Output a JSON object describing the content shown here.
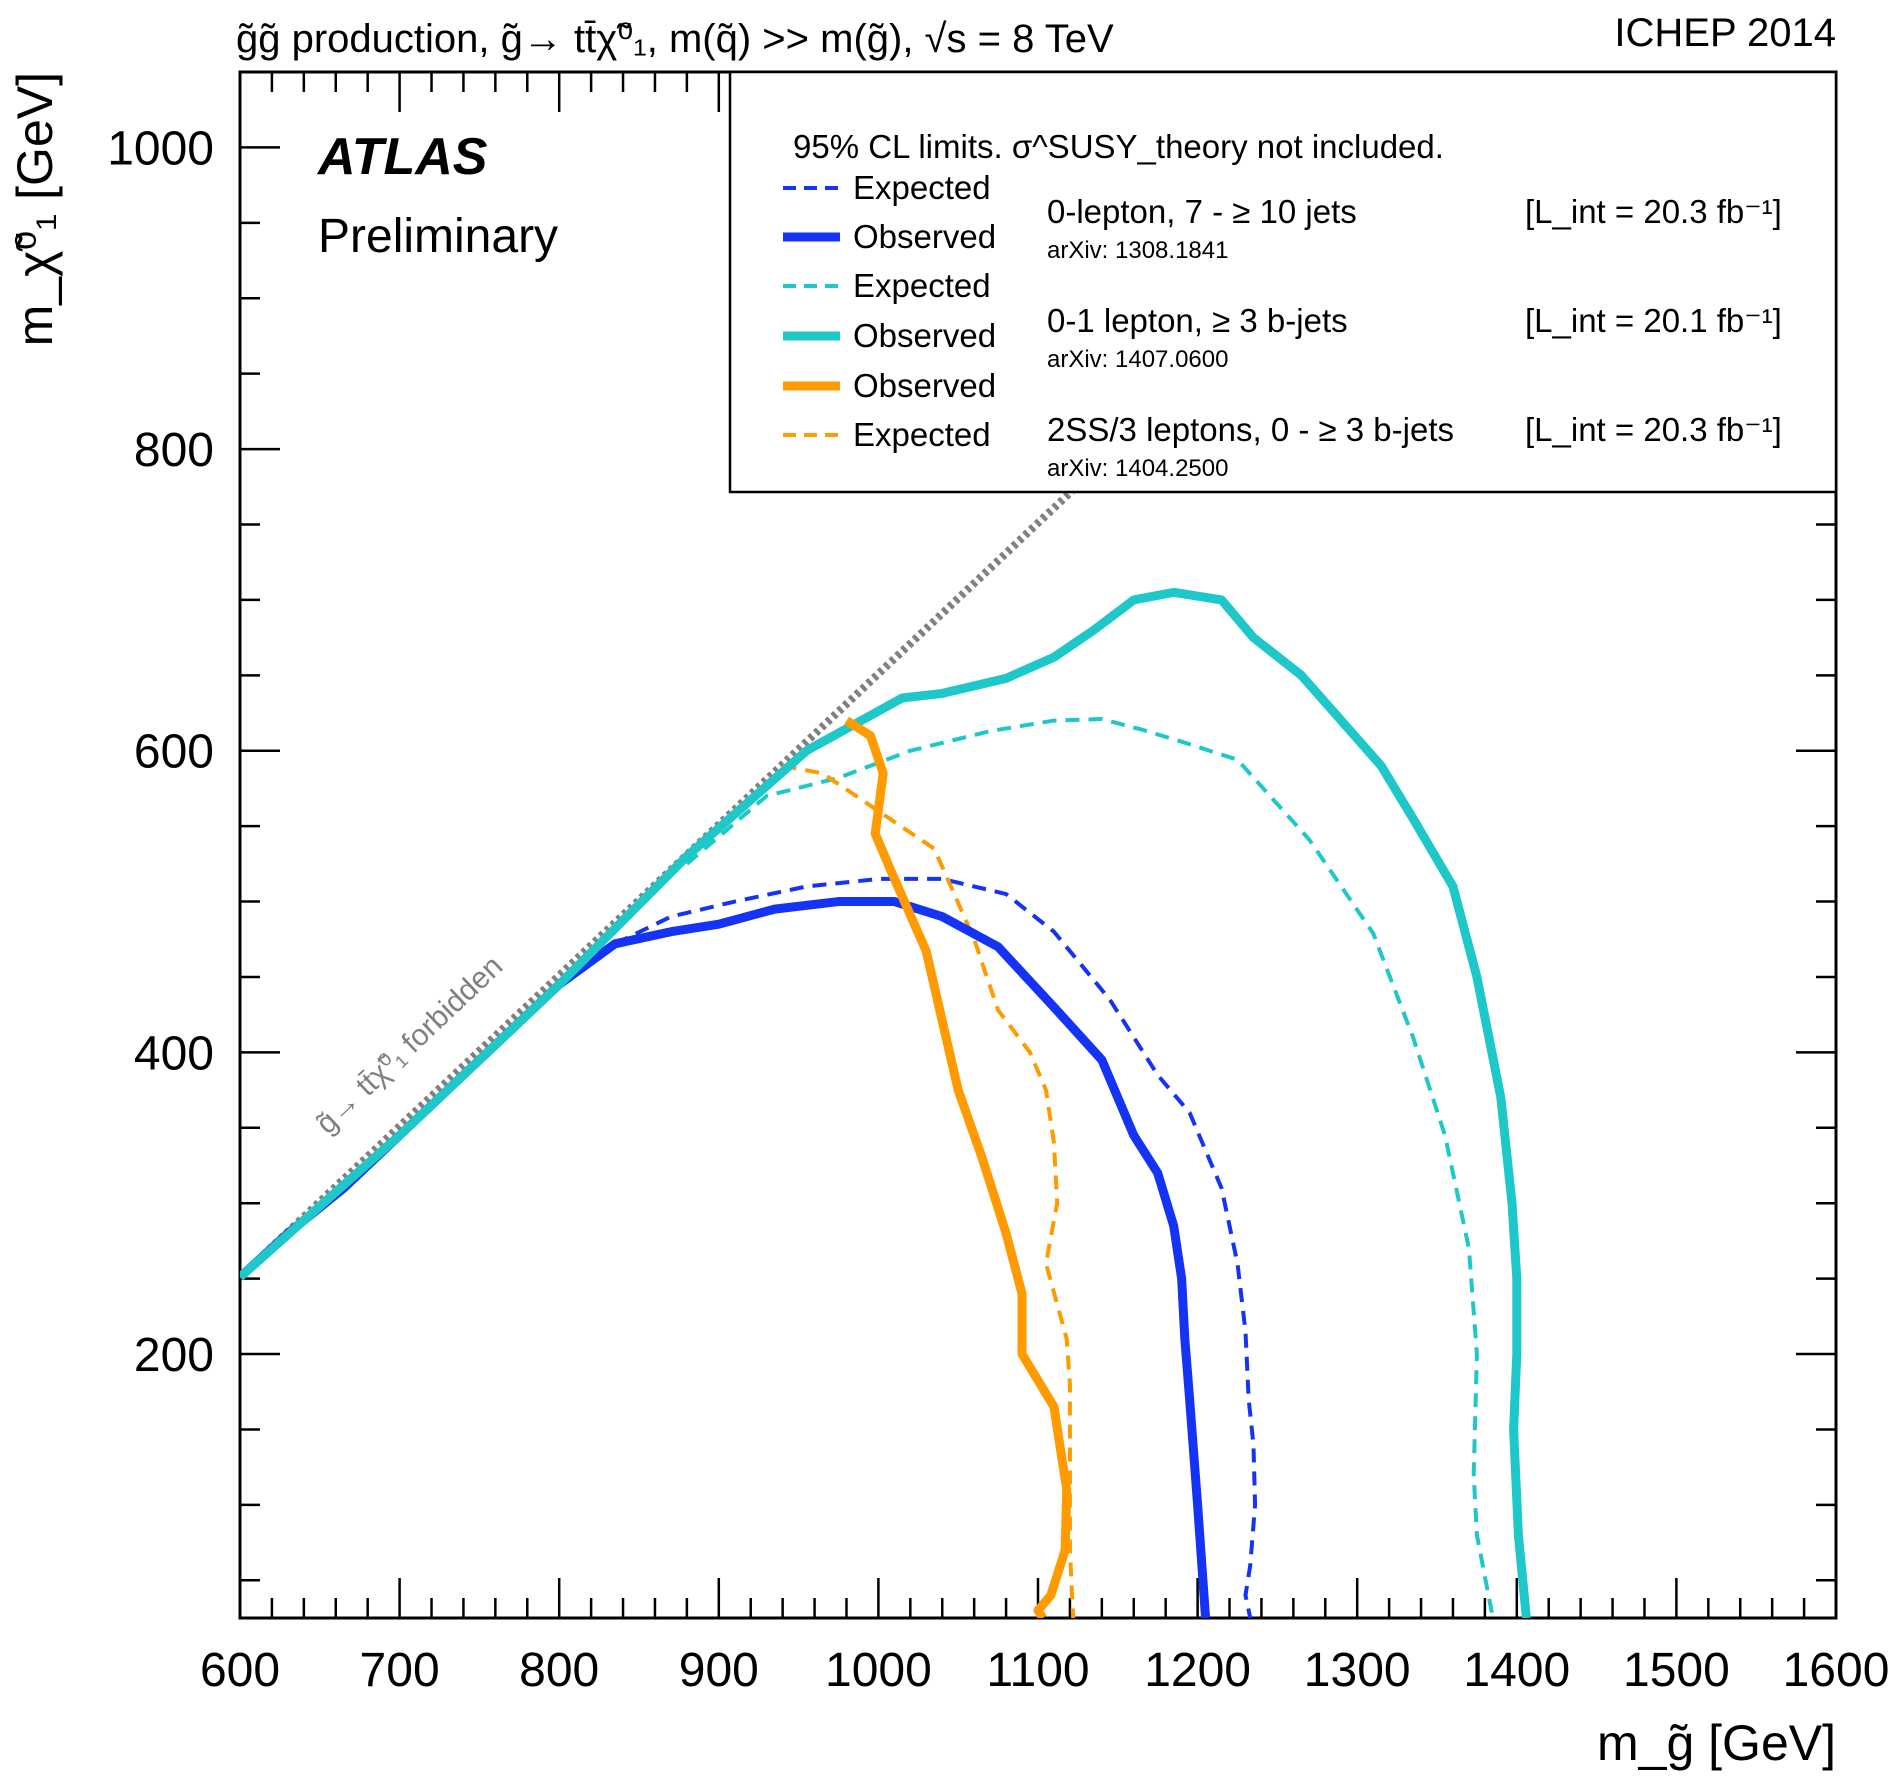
{
  "header": {
    "process": "g̃g̃ production, g̃→ tt̄χ̃⁰₁, m(q̃) >> m(g̃), √s = 8 TeV",
    "conference": "ICHEP 2014"
  },
  "badge": {
    "experiment": "ATLAS",
    "status": "Preliminary"
  },
  "forbidden_label": "g̃→ tt̄χ̃⁰₁ forbidden",
  "legend": {
    "header": "95% CL limits. σ^SUSY_theory not included.",
    "entries": [
      {
        "label": "Expected",
        "color": "#1433f5",
        "style": "dashed"
      },
      {
        "label": "Observed",
        "color": "#1433f5",
        "style": "solid"
      },
      {
        "label": "Expected",
        "color": "#1fc8c8",
        "style": "dashed"
      },
      {
        "label": "Observed",
        "color": "#1fc8c8",
        "style": "solid"
      },
      {
        "label": "Observed",
        "color": "#ff9a00",
        "style": "solid"
      },
      {
        "label": "Expected",
        "color": "#ff9a00",
        "style": "dashed"
      }
    ],
    "analyses": [
      {
        "name": "0-lepton, 7 - ≥ 10 jets",
        "arxiv": "arXiv: 1308.1841",
        "lumi": "[L_int = 20.3 fb⁻¹]"
      },
      {
        "name": "0-1 lepton, ≥ 3 b-jets",
        "arxiv": "arXiv: 1407.0600",
        "lumi": "[L_int = 20.1 fb⁻¹]"
      },
      {
        "name": "2SS/3 leptons, 0 - ≥ 3 b-jets",
        "arxiv": "arXiv: 1404.2500",
        "lumi": "[L_int = 20.3 fb⁻¹]"
      }
    ]
  },
  "colors": {
    "zero_lepton": "#1433f5",
    "bjets": "#1fc8c8",
    "ss_leptons": "#ff9a00",
    "kinematic_limit": "#808080"
  },
  "chart_data": {
    "type": "line",
    "title": "g̃g̃ production, g̃→ tt̄χ̃⁰₁, m(q̃) >> m(g̃), √s = 8 TeV",
    "xlabel": "m_g̃ [GeV]",
    "ylabel": "m_χ̃⁰₁ [GeV]",
    "xlim": [
      600,
      1600
    ],
    "ylim": [
      25,
      1050
    ],
    "xticks": [
      600,
      700,
      800,
      900,
      1000,
      1100,
      1200,
      1300,
      1400,
      1500,
      1600
    ],
    "yticks": [
      200,
      400,
      600,
      800,
      1000
    ],
    "grid": false,
    "legend_position": "top-right",
    "kinematic_limit": {
      "x": [
        600,
        1130
      ],
      "y": [
        251,
        781
      ]
    },
    "series": [
      {
        "name": "0-lepton, 7 - ≥ 10 jets — Observed",
        "analysis": 0,
        "style": "solid",
        "color": "#1433f5",
        "x": [
          600,
          630,
          665,
          695,
          730,
          765,
          800,
          835,
          870,
          900,
          935,
          975,
          1010,
          1040,
          1075,
          1110,
          1140,
          1160,
          1175,
          1185,
          1190,
          1192,
          1195,
          1200,
          1205
        ],
        "y": [
          251,
          280,
          310,
          340,
          375,
          410,
          445,
          472,
          480,
          485,
          495,
          500,
          500,
          490,
          470,
          430,
          395,
          345,
          320,
          285,
          250,
          210,
          170,
          100,
          25
        ]
      },
      {
        "name": "0-lepton, 7 - ≥ 10 jets — Expected",
        "analysis": 0,
        "style": "dashed",
        "color": "#1433f5",
        "x": [
          835,
          870,
          910,
          955,
          1000,
          1040,
          1080,
          1110,
          1145,
          1175,
          1195,
          1215,
          1225,
          1230,
          1232,
          1235,
          1236,
          1233,
          1230,
          1233
        ],
        "y": [
          472,
          490,
          500,
          510,
          515,
          515,
          505,
          480,
          435,
          385,
          360,
          310,
          260,
          215,
          170,
          140,
          100,
          60,
          40,
          25
        ]
      },
      {
        "name": "0-1 lepton, ≥ 3 b-jets — Observed",
        "analysis": 1,
        "style": "solid",
        "color": "#1fc8c8",
        "x": [
          600,
          700,
          800,
          880,
          955,
          1015,
          1040,
          1080,
          1110,
          1135,
          1160,
          1185,
          1215,
          1235,
          1265,
          1290,
          1315,
          1335,
          1360,
          1375,
          1390,
          1397,
          1400,
          1400,
          1398,
          1401,
          1406
        ],
        "y": [
          251,
          345,
          445,
          530,
          600,
          635,
          638,
          648,
          662,
          680,
          700,
          705,
          700,
          675,
          650,
          620,
          590,
          555,
          510,
          450,
          370,
          300,
          250,
          200,
          150,
          80,
          25
        ]
      },
      {
        "name": "0-1 lepton, ≥ 3 b-jets — Expected",
        "analysis": 1,
        "style": "dashed",
        "color": "#1fc8c8",
        "x": [
          880,
          930,
          975,
          1020,
          1070,
          1110,
          1140,
          1165,
          1190,
          1225,
          1270,
          1310,
          1335,
          1355,
          1370,
          1375,
          1373,
          1375,
          1385
        ],
        "y": [
          525,
          570,
          582,
          600,
          613,
          620,
          621,
          614,
          606,
          594,
          541,
          479,
          410,
          345,
          270,
          200,
          120,
          80,
          25
        ]
      },
      {
        "name": "2SS/3 leptons, 0 - ≥ 3 b-jets — Observed",
        "analysis": 2,
        "style": "solid",
        "color": "#ff9a00",
        "x": [
          980,
          995,
          1003,
          998,
          1008,
          1030,
          1038,
          1050,
          1065,
          1080,
          1090,
          1090,
          1110,
          1118,
          1117,
          1108,
          1100,
          1103
        ],
        "y": [
          620,
          610,
          585,
          545,
          520,
          467,
          430,
          375,
          330,
          280,
          240,
          200,
          165,
          110,
          70,
          40,
          30,
          25
        ]
      },
      {
        "name": "2SS/3 leptons, 0 - ≥ 3 b-jets — Expected",
        "analysis": 2,
        "style": "dashed",
        "color": "#ff9a00",
        "x": [
          940,
          965,
          1000,
          1035,
          1060,
          1075,
          1095,
          1105,
          1110,
          1112,
          1105,
          1118,
          1120,
          1120,
          1120,
          1122
        ],
        "y": [
          590,
          585,
          560,
          535,
          475,
          428,
          400,
          375,
          340,
          300,
          260,
          210,
          180,
          130,
          70,
          25
        ]
      }
    ]
  }
}
